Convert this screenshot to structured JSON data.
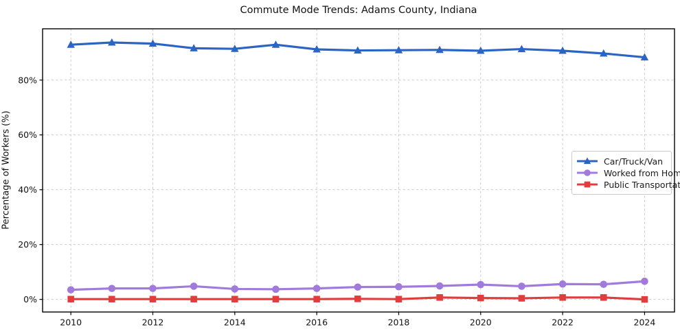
{
  "figure": {
    "title": "Commute Mode Trends: Adams County, Indiana"
  },
  "chart_data": {
    "type": "line",
    "title": "Commute Mode Trends: Adams County, Indiana",
    "xlabel": "",
    "ylabel": "Percentage of Workers (%)",
    "x": [
      2010,
      2011,
      2012,
      2013,
      2014,
      2015,
      2016,
      2017,
      2018,
      2019,
      2020,
      2021,
      2022,
      2023,
      2024
    ],
    "series": [
      {
        "name": "Car/Truck/Van",
        "color": "#2b64c5",
        "marker": "triangle-up",
        "values": [
          92.9,
          93.7,
          93.3,
          91.6,
          91.4,
          92.9,
          91.2,
          90.8,
          90.9,
          91.0,
          90.7,
          91.3,
          90.7,
          89.7,
          88.3
        ]
      },
      {
        "name": "Worked from Home",
        "color": "#a17bdb",
        "marker": "circle",
        "values": [
          3.5,
          4.0,
          4.0,
          4.8,
          3.8,
          3.7,
          4.0,
          4.5,
          4.6,
          4.9,
          5.4,
          4.8,
          5.6,
          5.5,
          6.6
        ]
      },
      {
        "name": "Public Transportation",
        "color": "#e23d3d",
        "marker": "square",
        "values": [
          0.1,
          0.1,
          0.1,
          0.1,
          0.1,
          0.1,
          0.1,
          0.2,
          0.1,
          0.7,
          0.5,
          0.4,
          0.7,
          0.7,
          0.0
        ]
      }
    ],
    "x_ticks": [
      2010,
      2012,
      2014,
      2016,
      2018,
      2020,
      2022,
      2024
    ],
    "y_ticks": [
      0,
      20,
      40,
      60,
      80
    ],
    "y_tick_suffix": "%",
    "xlim": [
      2009.31,
      2024.73
    ],
    "ylim": [
      -4.6,
      98.7
    ],
    "grid": true,
    "legend_position": "center-right"
  },
  "colors": {
    "background": "#ffffff",
    "grid": "#cccccc",
    "spine": "#000000",
    "text": "#111111",
    "legend_border": "#cccccc"
  }
}
